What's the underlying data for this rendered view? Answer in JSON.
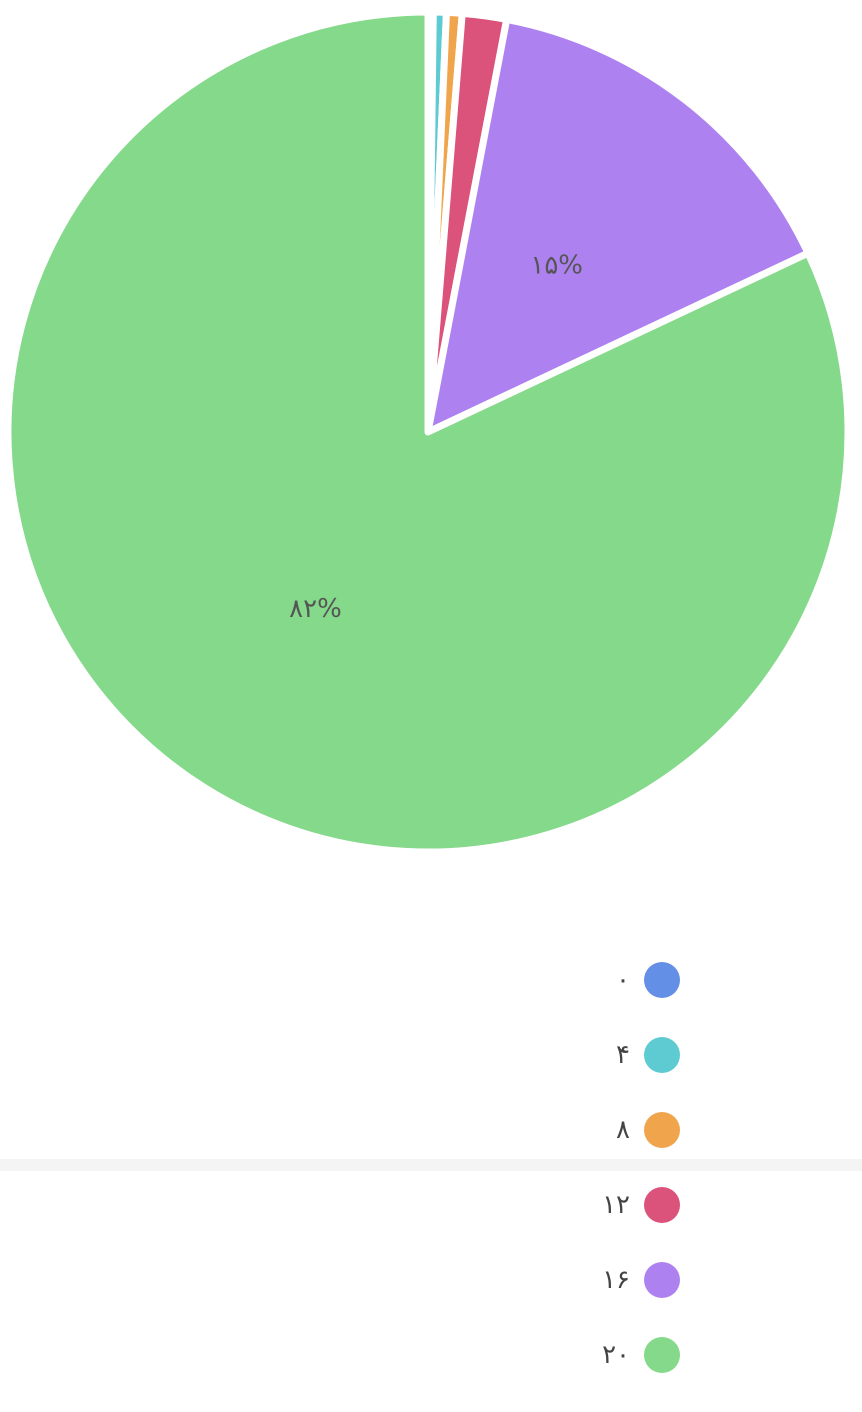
{
  "chart_data": {
    "type": "pie",
    "categories": [
      "۰",
      "۴",
      "۸",
      "۱۲",
      "۱۶",
      "۲۰"
    ],
    "values": [
      0.2,
      0.5,
      0.6,
      1.7,
      15,
      82
    ],
    "value_labels": [
      null,
      null,
      null,
      null,
      "۱۵%",
      "۸۲%"
    ],
    "colors": [
      "#6390e6",
      "#5ecbd3",
      "#f0a54d",
      "#db527b",
      "#ad82f0",
      "#84d98a"
    ],
    "start_angle": 0,
    "direction": "clockwise"
  }
}
